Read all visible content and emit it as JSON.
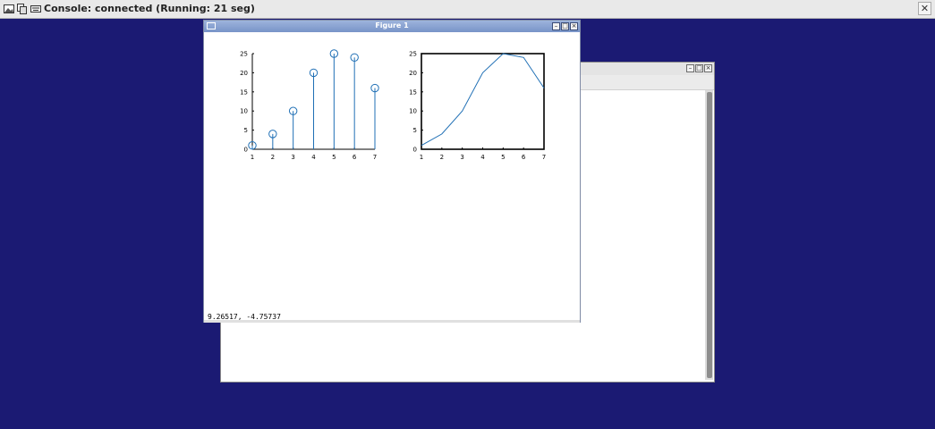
{
  "topbar": {
    "title": "Console: connected (Running: 21 seg)",
    "icons": [
      "image-icon",
      "copy-icon",
      "keyboard-icon"
    ],
    "close_glyph": "✕"
  },
  "figure_window": {
    "title": "Figure 1",
    "status_coords": "9.26517, -4.75737"
  },
  "chart_data": [
    {
      "type": "stem",
      "x": [
        1,
        2,
        3,
        4,
        5,
        6,
        7
      ],
      "values": [
        1,
        4,
        10,
        20,
        25,
        24,
        16
      ],
      "xlim": [
        1,
        7
      ],
      "ylim": [
        0,
        25
      ],
      "xticks": [
        "1",
        "2",
        "3",
        "4",
        "5",
        "6",
        "7"
      ],
      "yticks": [
        "0",
        "5",
        "10",
        "15",
        "20",
        "25"
      ],
      "color": "#1f6fb5"
    },
    {
      "type": "line",
      "x": [
        1,
        2,
        3,
        4,
        5,
        6,
        7
      ],
      "values": [
        1,
        4,
        10,
        20,
        25,
        24,
        16
      ],
      "xlim": [
        1,
        7
      ],
      "ylim": [
        0,
        25
      ],
      "xticks": [
        "1",
        "2",
        "3",
        "4",
        "5",
        "6",
        "7"
      ],
      "yticks": [
        "0",
        "5",
        "10",
        "15",
        "20",
        "25"
      ],
      "color": "#1f6fb5"
    }
  ],
  "colors": {
    "desktop": "#1b1a73",
    "accent": "#1f6fb5"
  }
}
